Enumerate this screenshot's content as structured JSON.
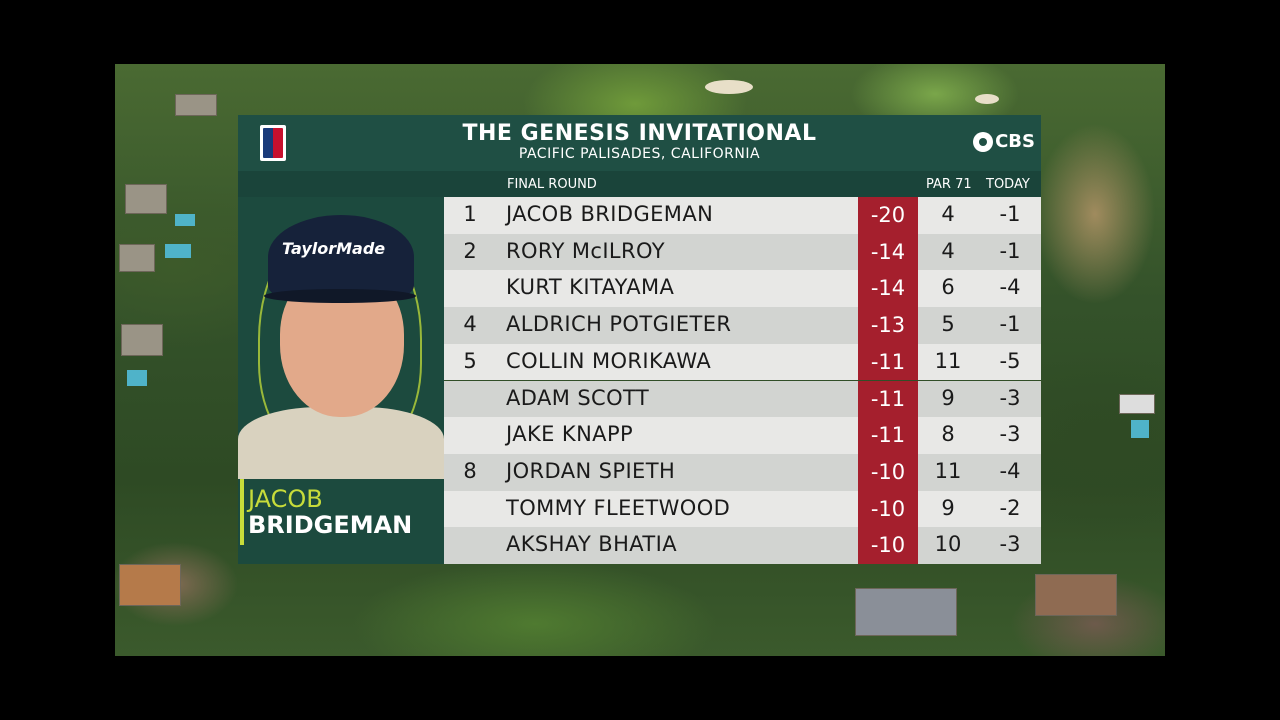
{
  "tournament": {
    "title": "THE GENESIS INVITATIONAL",
    "location": "PACIFIC PALISADES, CALIFORNIA",
    "network": "CBS"
  },
  "columns": {
    "round": "FINAL ROUND",
    "par": "PAR 71",
    "today": "TODAY"
  },
  "featured_player": {
    "first_name": "JACOB",
    "last_name": "BRIDGEMAN",
    "cap_text": "TaylorMade"
  },
  "leaderboard": [
    {
      "pos": "1",
      "name": "JACOB BRIDGEMAN",
      "score": "-20",
      "thru": "4",
      "today": "-1"
    },
    {
      "pos": "2",
      "name": "RORY McILROY",
      "score": "-14",
      "thru": "4",
      "today": "-1"
    },
    {
      "pos": "",
      "name": "KURT KITAYAMA",
      "score": "-14",
      "thru": "6",
      "today": "-4"
    },
    {
      "pos": "4",
      "name": "ALDRICH POTGIETER",
      "score": "-13",
      "thru": "5",
      "today": "-1"
    },
    {
      "pos": "5",
      "name": "COLLIN MORIKAWA",
      "score": "-11",
      "thru": "11",
      "today": "-5"
    },
    {
      "pos": "",
      "name": "ADAM SCOTT",
      "score": "-11",
      "thru": "9",
      "today": "-3"
    },
    {
      "pos": "",
      "name": "JAKE KNAPP",
      "score": "-11",
      "thru": "8",
      "today": "-3"
    },
    {
      "pos": "8",
      "name": "JORDAN SPIETH",
      "score": "-10",
      "thru": "11",
      "today": "-4"
    },
    {
      "pos": "",
      "name": "TOMMY FLEETWOOD",
      "score": "-10",
      "thru": "9",
      "today": "-2"
    },
    {
      "pos": "",
      "name": "AKSHAY BHATIA",
      "score": "-10",
      "thru": "10",
      "today": "-3"
    }
  ],
  "icons": {
    "tour_logo": "pga-tour-logo-icon",
    "network_logo": "cbs-eye-icon"
  },
  "colors": {
    "header": "#1f4f44",
    "score_bg": "#a51f2d",
    "accent": "#c7dc3a"
  }
}
